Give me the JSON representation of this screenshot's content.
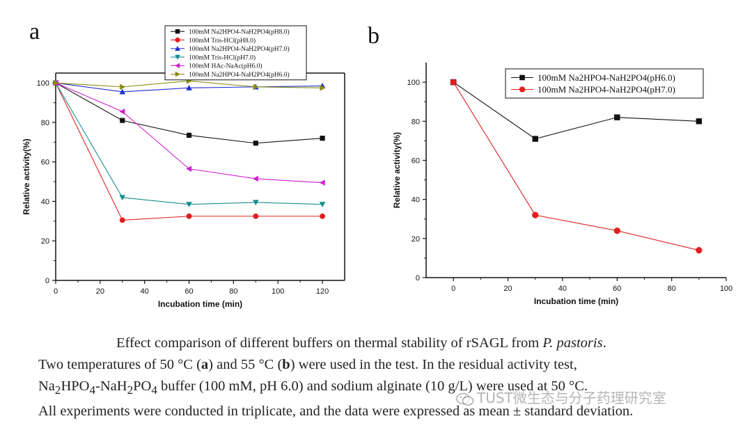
{
  "chart_data": [
    {
      "type": "line",
      "panel_label": "a",
      "xlabel": "Incubation time (min)",
      "ylabel": "Relative activity(%)",
      "xlim": [
        0,
        130
      ],
      "ylim": [
        0,
        105
      ],
      "xticks": [
        0,
        20,
        40,
        60,
        80,
        100,
        120
      ],
      "yticks": [
        0,
        20,
        40,
        60,
        80,
        100
      ],
      "legend_position": "top-right",
      "grid": false,
      "x": [
        0,
        30,
        60,
        90,
        120
      ],
      "series": [
        {
          "name": "100mM Na2HPO4-NaH2PO4(pH8.0)",
          "color": "#111111",
          "marker": "square",
          "values": [
            100,
            81,
            73.5,
            69.5,
            72
          ]
        },
        {
          "name": "100mM Tris-HCl(pH8.0)",
          "color": "#e02020",
          "marker": "circle",
          "values": [
            100,
            30.5,
            32.5,
            32.5,
            32.5
          ]
        },
        {
          "name": "100mM Na2HPO4-NaH2PO4(pH7.0)",
          "color": "#1f2fd0",
          "marker": "triangle-up",
          "values": [
            100,
            95.5,
            97.5,
            98,
            98.5
          ]
        },
        {
          "name": "100mM Tris-HCl(pH7.0)",
          "color": "#1a8f8f",
          "marker": "triangle-down",
          "values": [
            100,
            42,
            38.5,
            39.5,
            38.5
          ]
        },
        {
          "name": "100mM HAc-NaAc(pH6.0)",
          "color": "#d020d0",
          "marker": "triangle-left",
          "values": [
            100,
            85.5,
            56.5,
            51.5,
            49.5
          ]
        },
        {
          "name": "100mM Na2HPO4-NaH2PO4(pH6.0)",
          "color": "#8a8a10",
          "marker": "triangle-right",
          "values": [
            100,
            98,
            101,
            98,
            97.5
          ]
        }
      ]
    },
    {
      "type": "line",
      "panel_label": "b",
      "xlabel": "Incubation time (min)",
      "ylabel": "Relative activity(%)",
      "xlim": [
        -10,
        100
      ],
      "ylim": [
        0,
        110
      ],
      "xticks": [
        0,
        20,
        40,
        60,
        80,
        100
      ],
      "yticks": [
        0,
        20,
        40,
        60,
        80,
        100
      ],
      "legend_position": "top-right",
      "grid": false,
      "x": [
        0,
        30,
        60,
        90
      ],
      "series": [
        {
          "name": "100mM Na2HPO4-NaH2PO4(pH6.0)",
          "color": "#111111",
          "marker": "square",
          "values": [
            100,
            71,
            82,
            80
          ]
        },
        {
          "name": "100mM Na2HPO4-NaH2PO4(pH7.0)",
          "color": "#e02020",
          "marker": "circle",
          "values": [
            100,
            32,
            24,
            14
          ]
        }
      ]
    }
  ],
  "caption": {
    "line1_a": "Effect comparison of different buffers on thermal stability of rSAGL from ",
    "line1_organism": "P. pastoris",
    "line1_b": ".",
    "line2_a": "Two temperatures of 50 °C (",
    "bold_a": "a",
    "line2_b": ") and 55 °C (",
    "bold_b": "b",
    "line2_c": ") were used in the test.  In the residual activity test,",
    "line3_a": "Na",
    "sub_2a": "2",
    "line3_b": "HPO",
    "sub_4": "4",
    "line3_c": "-NaH",
    "sub_2b": "2",
    "line3_d": "PO",
    "sub_4b": "4",
    "line3_e": " buffer (100 mM, pH 6.0) and sodium alginate (10 g/L) were used at 50 °C.",
    "line4": "All experiments were conducted in triplicate, and the data were expressed as mean ± standard deviation."
  },
  "watermark": {
    "text": "TUST微生态与分子药理研究室",
    "icon": "wechat-icon"
  }
}
